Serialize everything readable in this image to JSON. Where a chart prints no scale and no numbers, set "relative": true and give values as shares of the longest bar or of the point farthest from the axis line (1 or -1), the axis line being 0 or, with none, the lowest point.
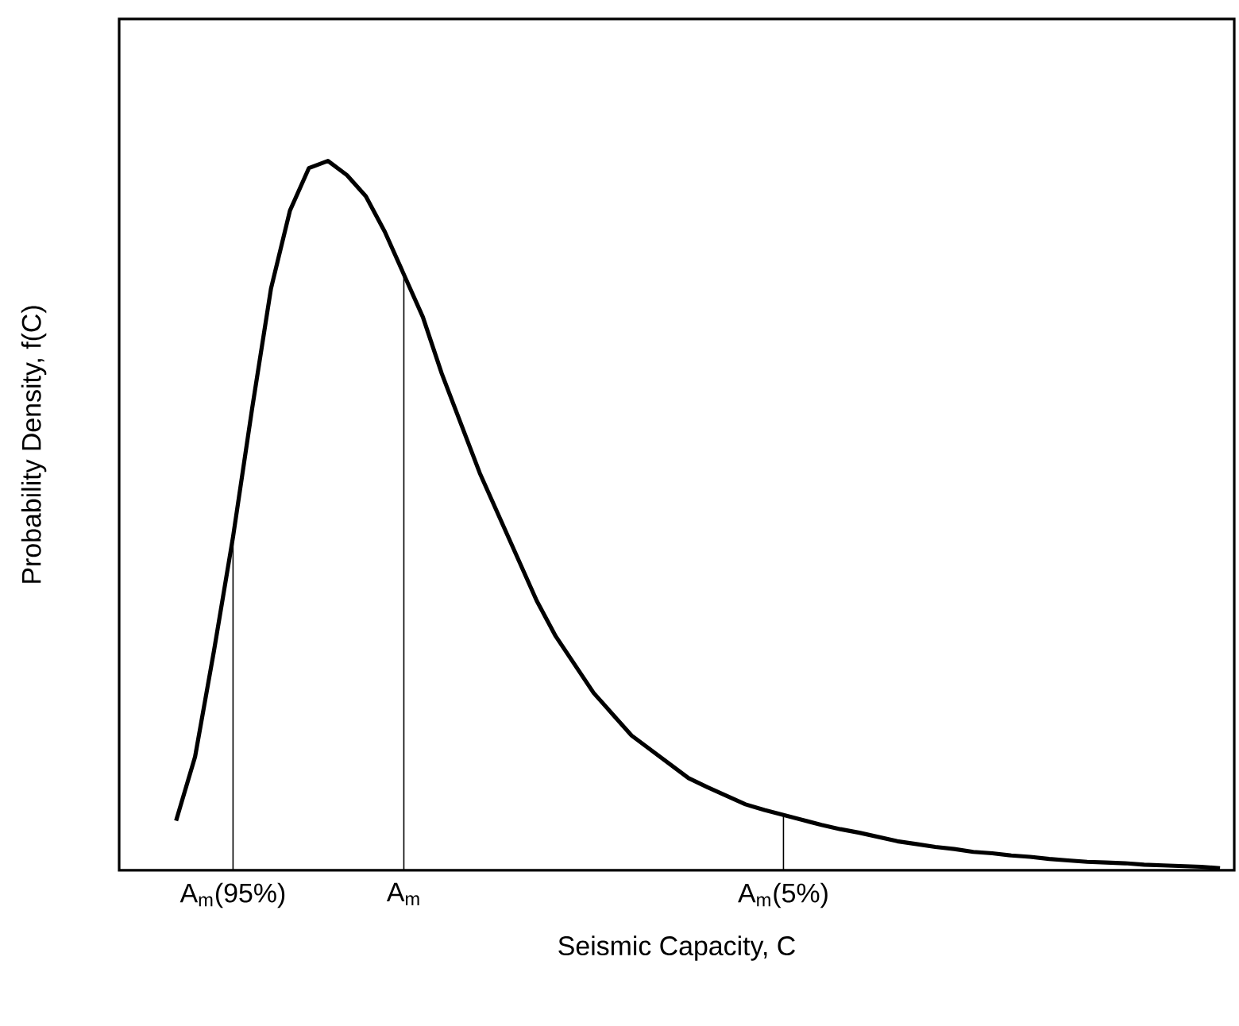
{
  "chart_data": {
    "type": "line",
    "relative": true,
    "xlabel": "Seismic Capacity, C",
    "ylabel": "Probability Density, f(C)",
    "categories": [
      null,
      null,
      null,
      "A$_{m}$(95%)",
      null,
      null,
      null,
      null,
      null,
      null,
      null,
      null,
      "A$_{m}$",
      null,
      null,
      null,
      null,
      null,
      null,
      null,
      null,
      null,
      null,
      null,
      null,
      null,
      null,
      null,
      null,
      null,
      null,
      null,
      "A$_{m}$(5%)",
      null,
      null,
      null,
      null,
      null,
      null,
      null,
      null,
      null,
      null,
      null,
      null,
      null,
      null,
      null,
      null,
      null,
      null,
      null,
      null,
      null,
      null,
      null
    ],
    "series": [
      {
        "color": "#000000",
        "values": [
          0.07,
          0.16,
          0.31,
          0.47,
          0.65,
          0.82,
          0.93,
          0.99,
          1.0,
          0.98,
          0.95,
          0.9,
          0.84,
          0.78,
          0.7,
          0.63,
          0.56,
          0.5,
          0.44,
          0.38,
          0.33,
          0.29,
          0.25,
          0.22,
          0.19,
          0.17,
          0.15,
          0.13,
          0.117,
          0.105,
          0.093,
          0.085,
          0.078,
          0.071,
          0.064,
          0.058,
          0.053,
          0.047,
          0.041,
          0.037,
          0.033,
          0.03,
          0.026,
          0.024,
          0.021,
          0.019,
          0.016,
          0.014,
          0.012,
          0.011,
          0.01,
          0.008,
          0.007,
          0.006,
          0.005,
          0.003
        ]
      },
      {
        "type": "bar",
        "color": "#000000",
        "values": [
          null,
          null,
          null,
          0.47,
          null,
          null,
          null,
          null,
          null,
          null,
          null,
          null,
          0.84,
          null,
          null,
          null,
          null,
          null,
          null,
          null,
          null,
          null,
          null,
          null,
          null,
          null,
          null,
          null,
          null,
          null,
          null,
          null,
          0.078,
          null,
          null,
          null,
          null,
          null,
          null,
          null,
          null,
          null,
          null,
          null,
          null,
          null,
          null,
          null,
          null,
          null,
          null,
          null,
          null,
          null,
          null,
          null
        ]
      }
    ]
  }
}
